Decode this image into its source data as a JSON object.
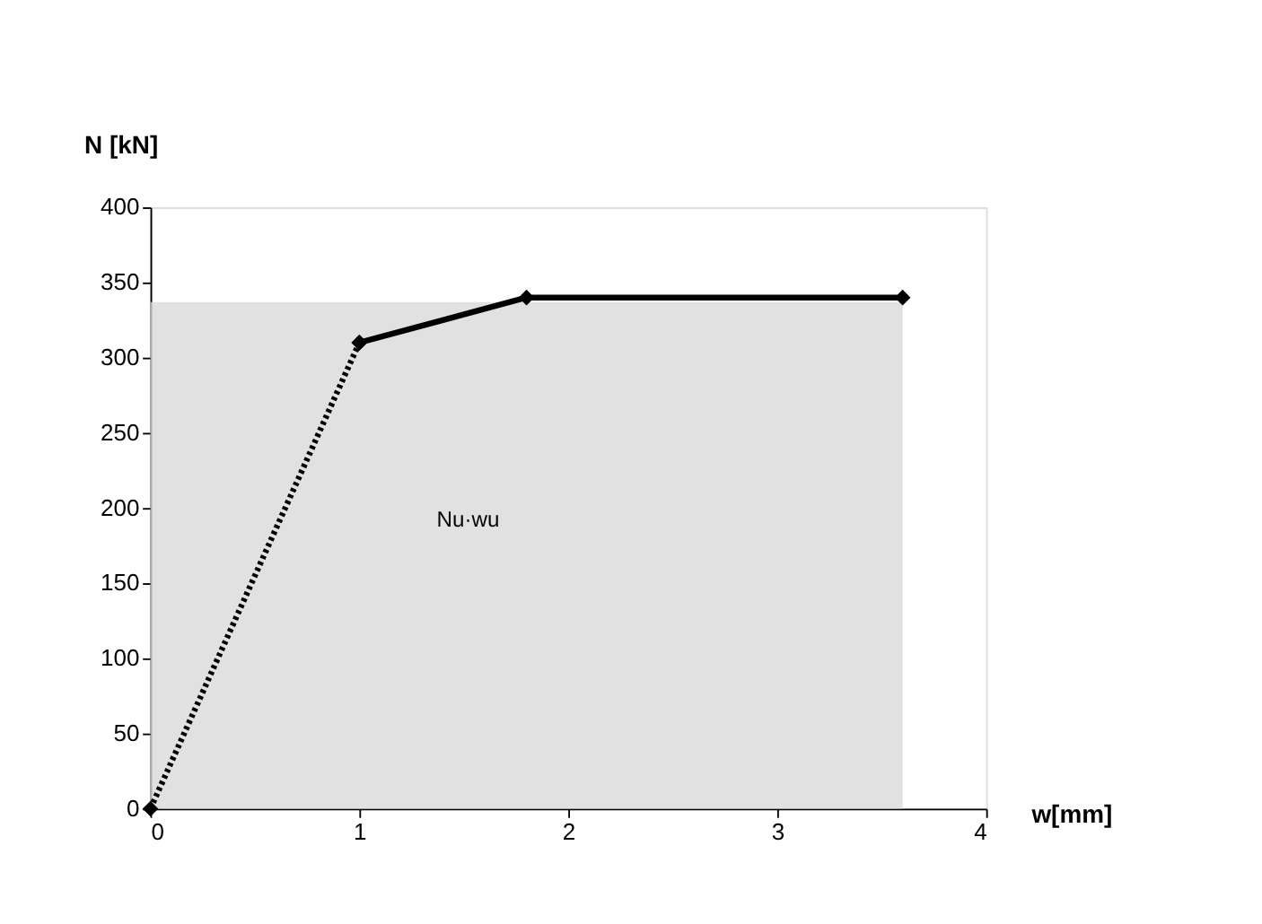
{
  "chart_data": {
    "type": "line",
    "xlabel": "w[mm]",
    "ylabel": "N [kN]",
    "xlim": [
      0,
      4
    ],
    "xticks": [
      0,
      1,
      2,
      3,
      4
    ],
    "ylim": [
      0,
      400
    ],
    "yticks": [
      0,
      50,
      100,
      150,
      200,
      250,
      300,
      350,
      400
    ],
    "series": [
      {
        "type": "area",
        "color": "#d9d9d9",
        "x": [
          0,
          3.6
        ],
        "values": [
          337,
          337
        ]
      },
      {
        "color": "#000000",
        "x": [
          0,
          1
        ],
        "values": [
          0,
          310
        ],
        "line_style": "dotted",
        "marker": "diamond"
      },
      {
        "color": "#000000",
        "x": [
          1,
          1.8,
          3.6
        ],
        "values": [
          310,
          340,
          340
        ],
        "line_style": "solid",
        "marker": "diamond"
      }
    ],
    "annotations": [
      "Nu·wu"
    ]
  }
}
